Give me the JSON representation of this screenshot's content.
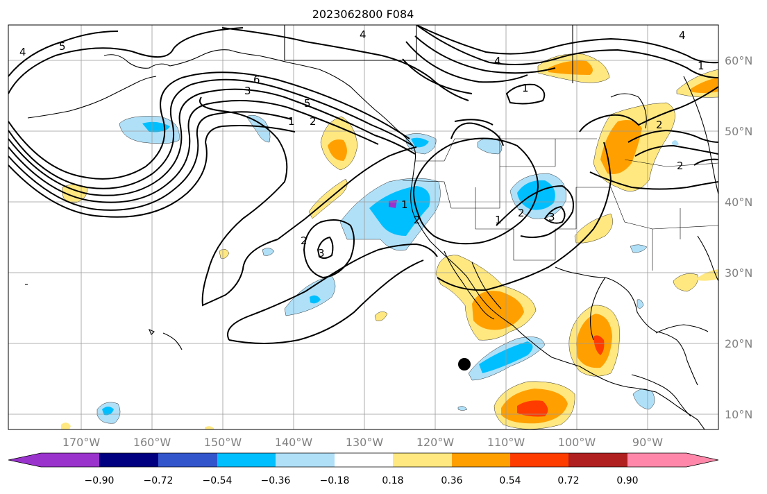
{
  "title": "2023062800 F084",
  "lon_ticks": [
    "170°W",
    "160°W",
    "150°W",
    "140°W",
    "130°W",
    "120°W",
    "110°W",
    "100°W",
    "90°W"
  ],
  "lat_ticks": [
    "60°N",
    "50°N",
    "40°N",
    "30°N",
    "20°N",
    "10°N"
  ],
  "colorbar": {
    "labels": [
      "−0.90",
      "−0.72",
      "−0.54",
      "−0.36",
      "−0.18",
      "0.18",
      "0.36",
      "0.54",
      "0.72",
      "0.90"
    ],
    "colors": [
      "#9933cc",
      "#000080",
      "#3355cc",
      "#00bfff",
      "#b0e0f8",
      "#ffffff",
      "#ffe880",
      "#ffa000",
      "#ff3c00",
      "#b02020",
      "#ff88aa"
    ]
  },
  "contour_labels": [
    "4",
    "5",
    "4",
    "4",
    "6",
    "3",
    "5",
    "1",
    "2",
    "1",
    "4",
    "1",
    "2",
    "2",
    "1",
    "2",
    "3",
    "2",
    "3",
    "1",
    "2"
  ],
  "colors": {
    "contour": "#000000",
    "grid": "#999999",
    "coast": "#000000",
    "marker": "#000000"
  }
}
